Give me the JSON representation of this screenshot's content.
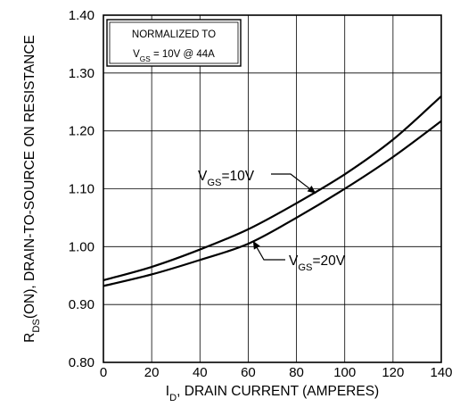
{
  "chart_data": {
    "type": "line",
    "title": "",
    "xlabel": {
      "prefix": "I",
      "sub": "D",
      "rest": ", DRAIN CURRENT (AMPERES)"
    },
    "ylabel": {
      "prefix": "R",
      "sub": "DS",
      "rest": "(ON), DRAIN-TO-SOURCE  ON  RESISTANCE"
    },
    "xlim": [
      0,
      140
    ],
    "ylim": [
      0.8,
      1.4
    ],
    "x_ticks": [
      0,
      20,
      40,
      60,
      80,
      100,
      120,
      140
    ],
    "x_tick_labels": [
      "0",
      "20",
      "40",
      "60",
      "80",
      "100",
      "120",
      "140"
    ],
    "y_ticks": [
      0.8,
      0.9,
      1.0,
      1.1,
      1.2,
      1.3,
      1.4
    ],
    "y_tick_labels": [
      "0.80",
      "0.90",
      "1.00",
      "1.10",
      "1.20",
      "1.30",
      "1.40"
    ],
    "grid": true,
    "note": {
      "line1": "NORMALIZED TO",
      "line2_prefix": "V",
      "line2_sub": "GS",
      "line2_rest": " = 10V  @  44A"
    },
    "series": [
      {
        "name": "VGS=10V",
        "label_prefix": "V",
        "label_sub": "GS",
        "label_rest": "=10V",
        "x": [
          0,
          20,
          40,
          60,
          80,
          100,
          120,
          140
        ],
        "y": [
          0.942,
          0.965,
          0.995,
          1.03,
          1.075,
          1.125,
          1.185,
          1.26
        ]
      },
      {
        "name": "VGS=20V",
        "label_prefix": "V",
        "label_sub": "GS",
        "label_rest": "=20V",
        "x": [
          0,
          20,
          40,
          60,
          80,
          100,
          120,
          140
        ],
        "y": [
          0.932,
          0.952,
          0.977,
          1.005,
          1.05,
          1.1,
          1.155,
          1.217
        ]
      }
    ]
  }
}
